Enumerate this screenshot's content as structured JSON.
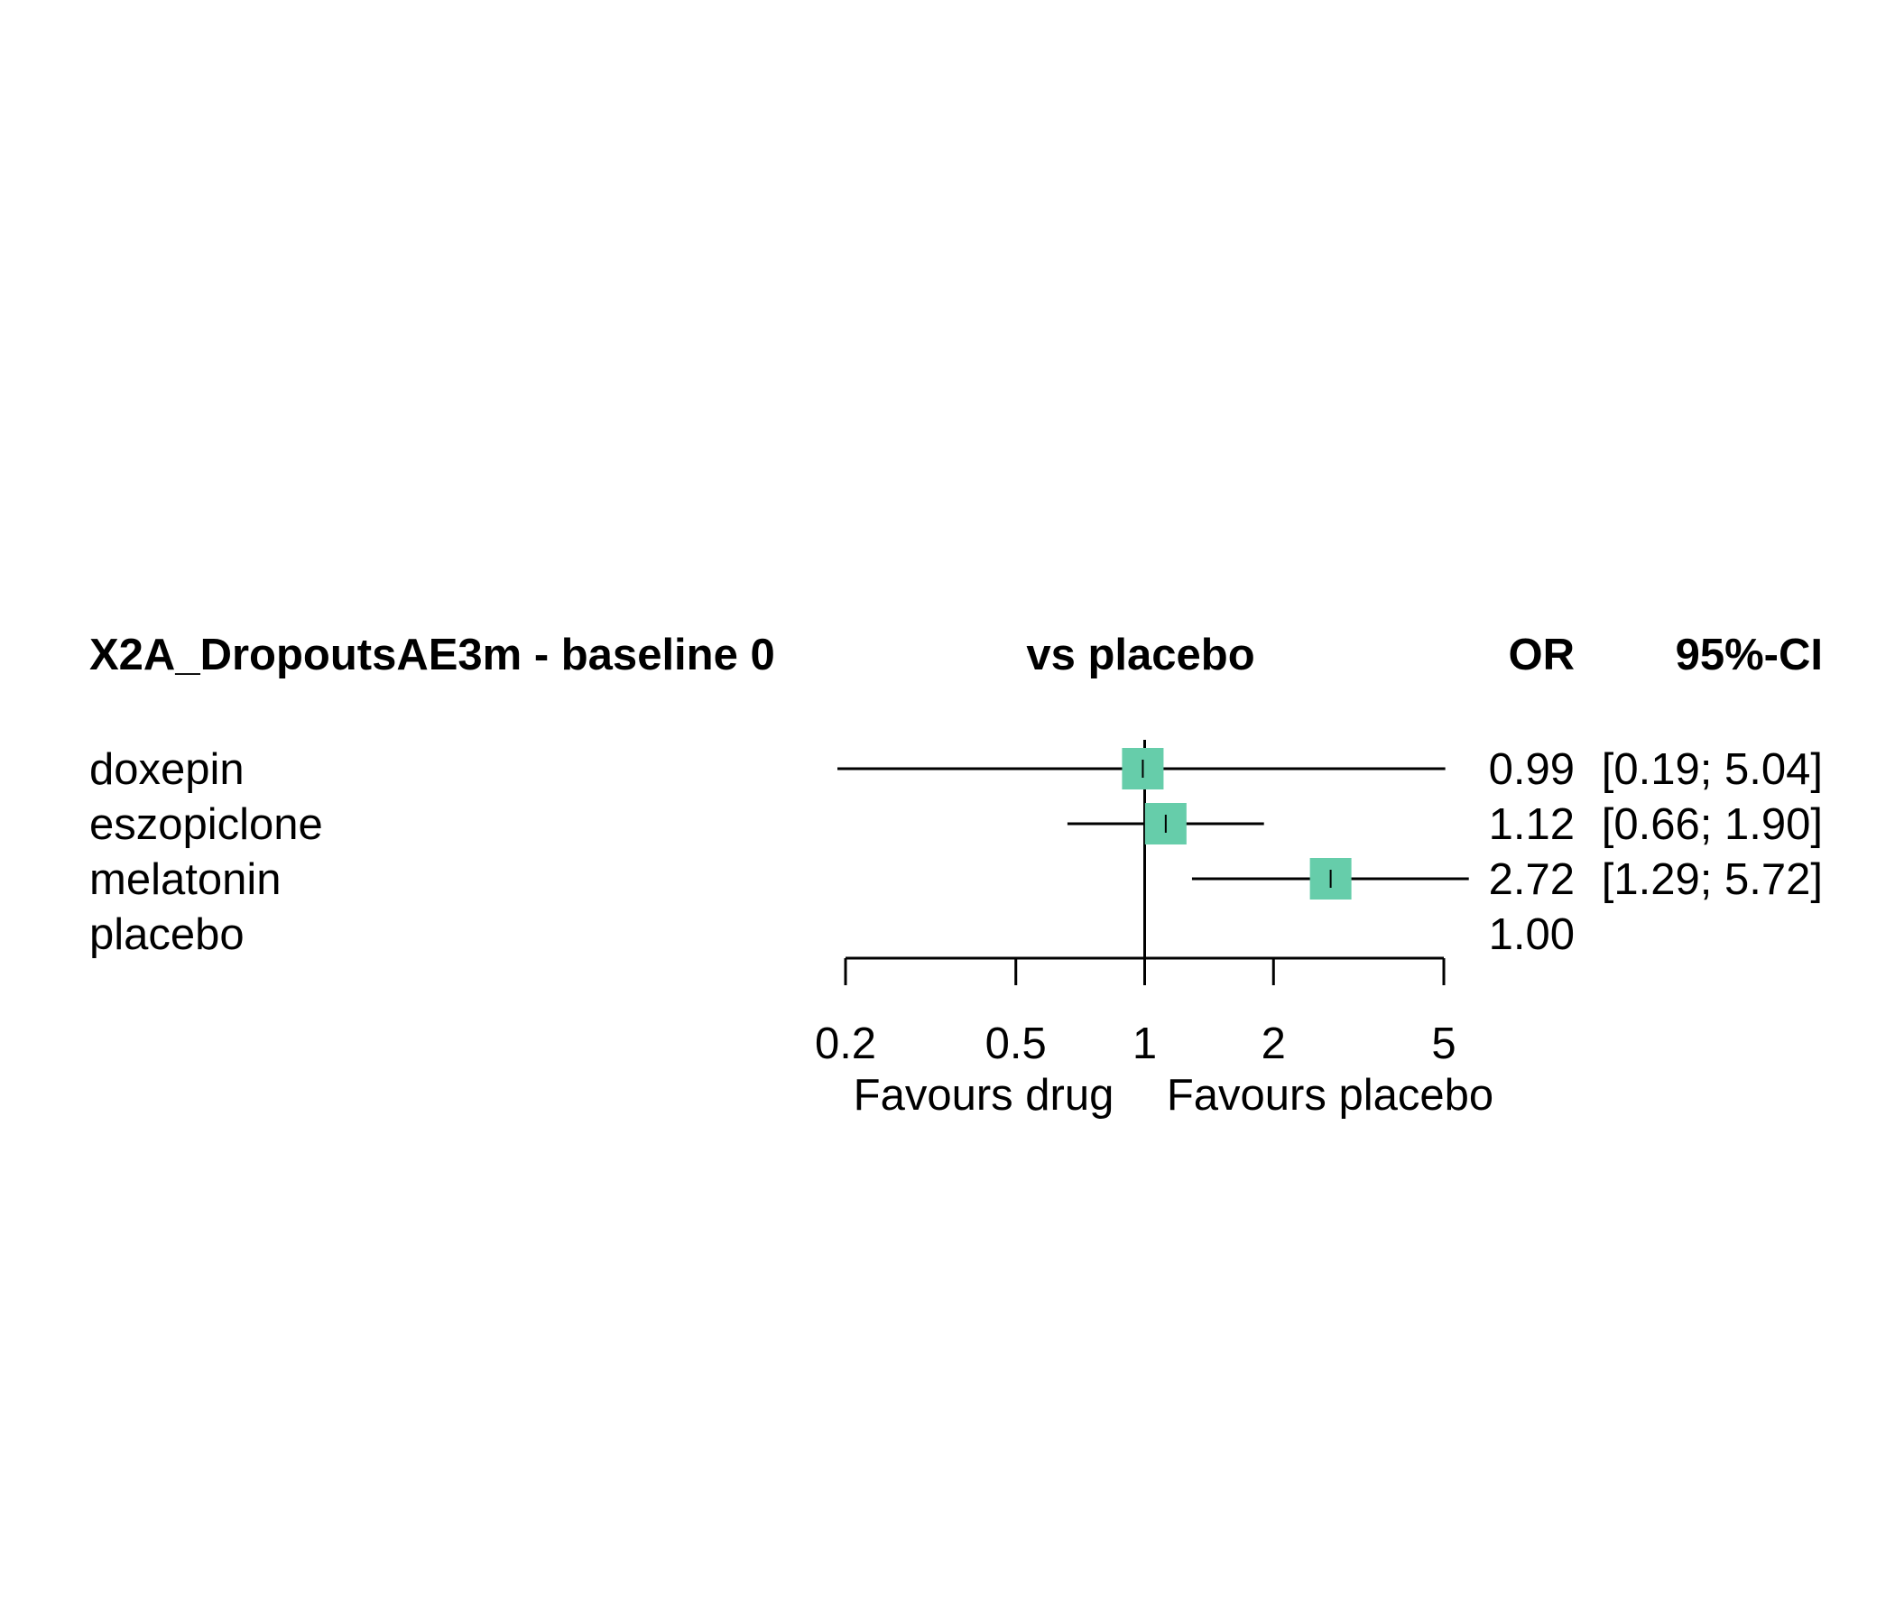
{
  "chart_data": {
    "type": "forest",
    "header": {
      "title": "X2A_DropoutsAE3m - baseline 0",
      "comparison": "vs placebo",
      "estimate_label": "OR",
      "ci_label": "95%-CI"
    },
    "rows": [
      {
        "label": "doxepin",
        "or": 0.99,
        "ci": [
          0.19,
          5.04
        ],
        "or_text": "0.99",
        "ci_text": "[0.19; 5.04]"
      },
      {
        "label": "eszopiclone",
        "or": 1.12,
        "ci": [
          0.66,
          1.9
        ],
        "or_text": "1.12",
        "ci_text": "[0.66; 1.90]"
      },
      {
        "label": "melatonin",
        "or": 2.72,
        "ci": [
          1.29,
          5.72
        ],
        "or_text": "2.72",
        "ci_text": "[1.29; 5.72]"
      },
      {
        "label": "placebo",
        "or": 1.0,
        "ci": null,
        "or_text": "1.00",
        "ci_text": ""
      }
    ],
    "x_axis": {
      "scale": "log",
      "range": [
        0.2,
        5
      ],
      "ticks": [
        0.2,
        0.5,
        1,
        2,
        5
      ],
      "tick_labels": [
        "0.2",
        "0.5",
        "1",
        "2",
        "5"
      ],
      "reference_value": 1
    },
    "direction_labels": {
      "left": "Favours drug",
      "right": "Favours placebo"
    },
    "colors": {
      "marker": "#66cdaa",
      "line": "#000000"
    }
  }
}
